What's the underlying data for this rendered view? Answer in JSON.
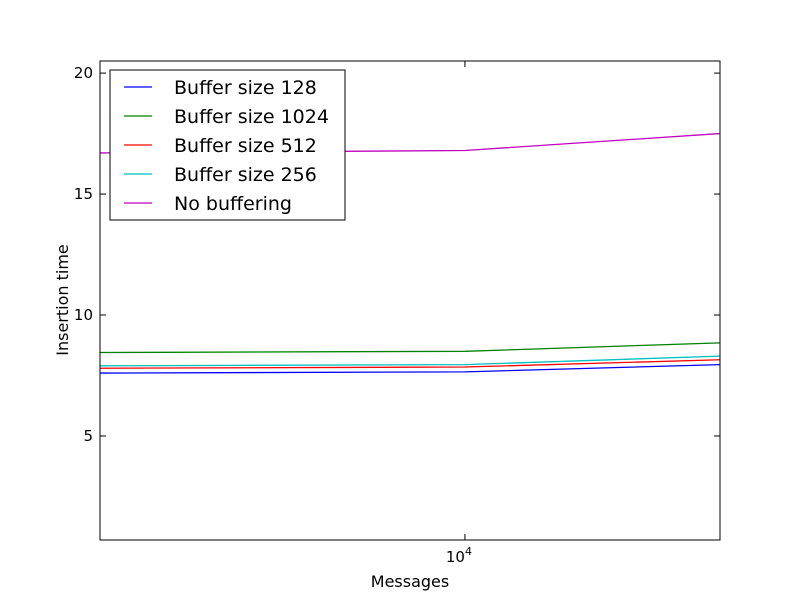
{
  "chart_data": {
    "type": "line",
    "title": "",
    "xlabel": "Messages",
    "ylabel": "Insertion time",
    "x_scale": "log",
    "xlim": [
      1000,
      50000
    ],
    "ylim": [
      0.7,
      20.5
    ],
    "x": [
      1000,
      10000,
      50000
    ],
    "x_ticks": [
      {
        "value": 10000,
        "base": "10",
        "exp": "4"
      }
    ],
    "y_ticks": [
      {
        "value": 5,
        "label": "5"
      },
      {
        "value": 10,
        "label": "10"
      },
      {
        "value": 15,
        "label": "15"
      },
      {
        "value": 20,
        "label": "20"
      }
    ],
    "grid": false,
    "legend_position": "top-left",
    "series": [
      {
        "name": "Buffer size 128",
        "color": "#0000ff",
        "values": [
          7.6,
          7.65,
          7.95
        ]
      },
      {
        "name": "Buffer size 1024",
        "color": "#008000",
        "values": [
          8.45,
          8.5,
          8.85
        ]
      },
      {
        "name": "Buffer size 512",
        "color": "#ff0000",
        "values": [
          7.8,
          7.85,
          8.15
        ]
      },
      {
        "name": "Buffer size 256",
        "color": "#00bfbf",
        "values": [
          7.9,
          7.95,
          8.3
        ]
      },
      {
        "name": "No buffering",
        "color": "#bf00bf",
        "values": [
          16.7,
          16.8,
          17.5
        ]
      }
    ]
  }
}
